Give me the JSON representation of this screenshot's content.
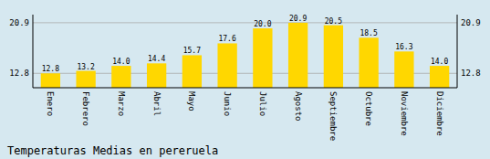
{
  "chart_data": {
    "type": "bar",
    "title": "Temperaturas Medias en pereruela",
    "categories": [
      "Enero",
      "Febrero",
      "Marzo",
      "Abril",
      "Mayo",
      "Junio",
      "Julio",
      "Agosto",
      "Septiembre",
      "Octubre",
      "Noviembre",
      "Diciembre"
    ],
    "values": [
      12.8,
      13.2,
      14.0,
      14.4,
      15.7,
      17.6,
      20.0,
      20.9,
      20.5,
      18.5,
      16.3,
      14.0
    ],
    "value_labels": [
      "12.8",
      "13.2",
      "14.0",
      "14.4",
      "15.7",
      "17.6",
      "20.0",
      "20.9",
      "20.5",
      "18.5",
      "16.3",
      "14.0"
    ],
    "color": "#FFD700",
    "ylim": [
      10.5,
      22.2
    ],
    "yticks": [
      12.8,
      20.9
    ],
    "grid": true,
    "data_labels": true
  }
}
